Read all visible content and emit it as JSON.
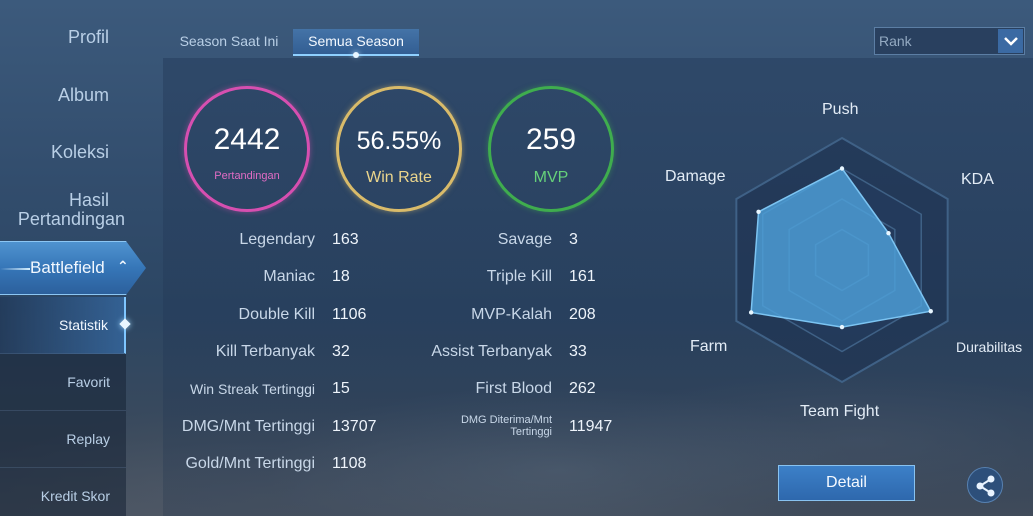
{
  "sidebar": {
    "items": [
      {
        "key": "profil",
        "label": "Profil"
      },
      {
        "key": "album",
        "label": "Album"
      },
      {
        "key": "koleksi",
        "label": "Koleksi"
      },
      {
        "key": "hasil",
        "label1": "Hasil",
        "label2": "Pertandingan"
      }
    ],
    "battlefield": {
      "label": "Battlefield"
    },
    "sub_items": [
      {
        "key": "statistik",
        "label": "Statistik"
      },
      {
        "key": "favorit",
        "label": "Favorit"
      },
      {
        "key": "replay",
        "label": "Replay"
      },
      {
        "key": "kredit",
        "label": "Kredit Skor"
      }
    ]
  },
  "tabs": {
    "current": "Season Saat Ini",
    "all": "Semua Season"
  },
  "rank_select": {
    "selected": "Rank",
    "icon": "chevron-down-icon"
  },
  "summary": {
    "games": {
      "value": "2442",
      "label": "Pertandingan",
      "color": "#d64fb0"
    },
    "winrate": {
      "value": "56.55%",
      "label": "Win Rate",
      "color": "#d9bb6a"
    },
    "mvp": {
      "value": "259",
      "label": "MVP",
      "color": "#3fad4e"
    }
  },
  "stats_left": [
    {
      "label": "Legendary",
      "value": "163"
    },
    {
      "label": "Maniac",
      "value": "18"
    },
    {
      "label": "Double Kill",
      "value": "1106"
    },
    {
      "label": "Kill Terbanyak",
      "value": "32"
    },
    {
      "label": "Win Streak Tertinggi",
      "value": "15"
    },
    {
      "label": "DMG/Mnt Tertinggi",
      "value": "13707"
    },
    {
      "label": "Gold/Mnt Tertinggi",
      "value": "1108"
    }
  ],
  "stats_right": [
    {
      "label": "Savage",
      "value": "3"
    },
    {
      "label": "Triple Kill",
      "value": "161"
    },
    {
      "label": "MVP-Kalah",
      "value": "208"
    },
    {
      "label": "Assist Terbanyak",
      "value": "33"
    },
    {
      "label": "First Blood",
      "value": "262"
    },
    {
      "label": "DMG Diterima/Mnt Tertinggi",
      "value": "11947"
    }
  ],
  "radar": {
    "axes": [
      "Push",
      "KDA",
      "Durabilitas",
      "Team Fight",
      "Farm",
      "Damage"
    ],
    "values": [
      0.75,
      0.44,
      0.84,
      0.55,
      0.86,
      0.79
    ],
    "fill_color": "#4fa3dc"
  },
  "actions": {
    "detail_label": "Detail",
    "share_icon": "share-icon"
  }
}
